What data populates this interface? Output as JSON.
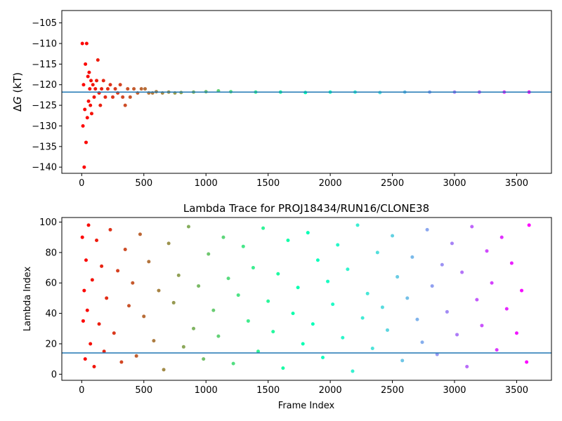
{
  "chart_data": [
    {
      "type": "scatter",
      "title": "",
      "xlabel": "",
      "ylabel_prefix": "Δ",
      "ylabel_var": "G",
      "ylabel_unit": " (kT)",
      "xlim": [
        -160,
        3780
      ],
      "ylim": [
        -141.5,
        -102.0
      ],
      "xticks": [
        0,
        500,
        1000,
        1500,
        2000,
        2500,
        3000,
        3500
      ],
      "yticks": [
        -140,
        -135,
        -130,
        -125,
        -120,
        -115,
        -110,
        -105
      ],
      "hline": -121.8,
      "hline_color": "#1f77b4",
      "colormap": "rainbow",
      "series": [
        {
          "x": [
            5,
            10,
            15,
            20,
            25,
            30,
            35,
            40,
            45,
            50,
            55,
            60,
            65,
            70,
            75,
            80,
            90,
            100,
            110,
            120,
            130,
            140,
            150,
            160,
            175,
            190,
            210,
            230,
            250,
            270,
            290,
            310,
            330,
            350,
            370,
            390,
            420,
            450,
            480,
            510,
            540,
            570,
            600,
            650,
            700,
            750,
            800,
            900,
            1000,
            1100,
            1200,
            1400,
            1600,
            1800,
            2000,
            2200,
            2400,
            2600,
            2800,
            3000,
            3200,
            3400,
            3600
          ],
          "y": [
            -110,
            -130,
            -120,
            -140,
            -126,
            -115,
            -134,
            -110,
            -128,
            -118,
            -124,
            -117,
            -121,
            -125,
            -119,
            -127,
            -120,
            -123,
            -121,
            -119,
            -114,
            -122,
            -125,
            -121,
            -119,
            -123,
            -121,
            -120,
            -123,
            -121,
            -122,
            -120,
            -123,
            -125,
            -121,
            -123,
            -121,
            -122,
            -121,
            -121,
            -122,
            -122,
            -121.7,
            -122,
            -121.8,
            -122,
            -121.9,
            -121.8,
            -121.7,
            -121.5,
            -121.7,
            -121.8,
            -121.8,
            -121.9,
            -121.8,
            -121.8,
            -121.9,
            -121.8,
            -121.8,
            -121.8,
            -121.8,
            -121.8,
            -121.8
          ]
        }
      ]
    },
    {
      "type": "scatter",
      "title": "Lambda Trace for PROJ18434/RUN16/CLONE38",
      "xlabel": "Frame Index",
      "ylabel": "Lambda Index",
      "xlim": [
        -160,
        3780
      ],
      "ylim": [
        -4,
        103
      ],
      "xticks": [
        0,
        500,
        1000,
        1500,
        2000,
        2500,
        3000,
        3500
      ],
      "yticks": [
        0,
        20,
        40,
        60,
        80,
        100
      ],
      "hline": 14,
      "hline_color": "#1f77b4",
      "colormap": "rainbow",
      "series": [
        {
          "x": [
            5,
            12,
            20,
            28,
            35,
            45,
            55,
            70,
            85,
            100,
            120,
            140,
            160,
            180,
            200,
            230,
            260,
            290,
            320,
            350,
            380,
            410,
            440,
            470,
            500,
            540,
            580,
            620,
            660,
            700,
            740,
            780,
            820,
            860,
            900,
            940,
            980,
            1020,
            1060,
            1100,
            1140,
            1180,
            1220,
            1260,
            1300,
            1340,
            1380,
            1420,
            1460,
            1500,
            1540,
            1580,
            1620,
            1660,
            1700,
            1740,
            1780,
            1820,
            1860,
            1900,
            1940,
            1980,
            2020,
            2060,
            2100,
            2140,
            2180,
            2220,
            2260,
            2300,
            2340,
            2380,
            2420,
            2460,
            2500,
            2540,
            2580,
            2620,
            2660,
            2700,
            2740,
            2780,
            2820,
            2860,
            2900,
            2940,
            2980,
            3020,
            3060,
            3100,
            3140,
            3180,
            3220,
            3260,
            3300,
            3340,
            3380,
            3420,
            3460,
            3500,
            3540,
            3580,
            3600
          ],
          "y": [
            90,
            35,
            55,
            10,
            75,
            42,
            98,
            20,
            62,
            5,
            88,
            33,
            71,
            15,
            50,
            95,
            27,
            68,
            8,
            82,
            45,
            60,
            12,
            92,
            38,
            74,
            22,
            55,
            3,
            86,
            47,
            65,
            18,
            97,
            30,
            58,
            10,
            79,
            42,
            25,
            90,
            63,
            7,
            52,
            84,
            35,
            70,
            15,
            96,
            48,
            28,
            66,
            4,
            88,
            40,
            57,
            20,
            93,
            33,
            75,
            11,
            61,
            46,
            85,
            24,
            69,
            2,
            98,
            37,
            53,
            17,
            80,
            44,
            29,
            91,
            64,
            9,
            50,
            77,
            36,
            21,
            95,
            58,
            13,
            72,
            41,
            86,
            26,
            67,
            5,
            97,
            49,
            32,
            81,
            60,
            16,
            90,
            43,
            73,
            27,
            55,
            8,
            98
          ]
        }
      ]
    }
  ]
}
